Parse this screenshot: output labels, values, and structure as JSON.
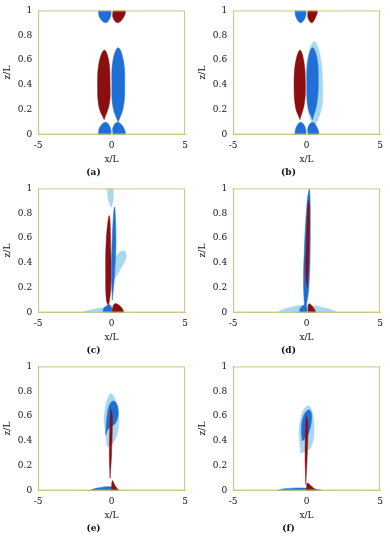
{
  "chart_data": [
    {
      "type": "contour",
      "title": "(a)",
      "xlabel": "x/L",
      "ylabel": "z/L",
      "xlim": [
        -5,
        5
      ],
      "ylim": [
        0,
        1
      ],
      "xticks": [
        -5,
        0,
        5
      ],
      "yticks": [
        0,
        0.2,
        0.4,
        0.6,
        0.8,
        1
      ],
      "grid": false,
      "series": [
        {
          "color": "#8b0f0f",
          "x": [
            -0.5,
            -0.15,
            -0.1,
            -0.2,
            -0.5,
            -0.85,
            -0.95,
            -0.85
          ],
          "values": [
            0.12,
            0.25,
            0.4,
            0.6,
            0.68,
            0.58,
            0.4,
            0.22
          ]
        },
        {
          "color": "#1f6fd6",
          "x": [
            0.45,
            0.8,
            0.9,
            0.8,
            0.45,
            0.1,
            0.02,
            0.1
          ],
          "values": [
            0.1,
            0.22,
            0.4,
            0.6,
            0.7,
            0.6,
            0.4,
            0.22
          ]
        },
        {
          "color": "#1f6fd6",
          "x": [
            -0.9,
            -0.1,
            -0.1,
            -0.4,
            -0.8
          ],
          "values": [
            0,
            0,
            0.06,
            0.1,
            0.06
          ]
        },
        {
          "color": "#1f6fd6",
          "x": [
            0.1,
            0.9,
            0.8,
            0.4,
            0.1
          ],
          "values": [
            0,
            0,
            0.06,
            0.1,
            0.06
          ]
        },
        {
          "color": "#1f6fd6",
          "x": [
            -0.9,
            -0.1,
            -0.1,
            -0.4,
            -0.8
          ],
          "values": [
            1,
            1,
            0.94,
            0.9,
            0.94
          ]
        },
        {
          "color": "#8b0f0f",
          "x": [
            0.1,
            0.9,
            0.8,
            0.4,
            0.1
          ],
          "values": [
            1,
            1,
            0.94,
            0.9,
            0.94
          ]
        }
      ]
    },
    {
      "type": "contour",
      "title": "(b)",
      "xlabel": "x/L",
      "ylabel": "z/L",
      "xlim": [
        -5,
        5
      ],
      "ylim": [
        0,
        1
      ],
      "xticks": [
        -5,
        0,
        5
      ],
      "yticks": [
        0,
        0.2,
        0.4,
        0.6,
        0.8,
        1
      ],
      "grid": false,
      "series": [
        {
          "color": "#a8d8f0",
          "x": [
            0.5,
            1.0,
            1.1,
            0.9,
            0.5,
            0.05,
            0,
            0.1
          ],
          "values": [
            0.05,
            0.2,
            0.4,
            0.65,
            0.75,
            0.6,
            0.4,
            0.2
          ]
        },
        {
          "color": "#8b0f0f",
          "x": [
            -0.45,
            -0.15,
            -0.08,
            -0.2,
            -0.45,
            -0.75,
            -0.85,
            -0.75
          ],
          "values": [
            0.12,
            0.25,
            0.42,
            0.6,
            0.68,
            0.58,
            0.4,
            0.22
          ]
        },
        {
          "color": "#1f6fd6",
          "x": [
            0.4,
            0.7,
            0.8,
            0.7,
            0.4,
            0.1,
            0.02,
            0.1
          ],
          "values": [
            0.12,
            0.25,
            0.45,
            0.62,
            0.7,
            0.6,
            0.4,
            0.22
          ]
        },
        {
          "color": "#1f6fd6",
          "x": [
            -0.8,
            -0.1,
            -0.1,
            -0.4,
            -0.7
          ],
          "values": [
            0,
            0,
            0.06,
            0.1,
            0.06
          ]
        },
        {
          "color": "#1f6fd6",
          "x": [
            0.1,
            0.8,
            0.7,
            0.4,
            0.1
          ],
          "values": [
            0,
            0,
            0.06,
            0.1,
            0.06
          ]
        },
        {
          "color": "#1f6fd6",
          "x": [
            -0.8,
            -0.1,
            -0.1,
            -0.4,
            -0.7
          ],
          "values": [
            1,
            1,
            0.94,
            0.9,
            0.94
          ]
        },
        {
          "color": "#8b0f0f",
          "x": [
            0.1,
            0.7,
            0.6,
            0.35,
            0.1
          ],
          "values": [
            1,
            1,
            0.94,
            0.9,
            0.94
          ]
        }
      ]
    },
    {
      "type": "contour",
      "title": "(c)",
      "xlabel": "x/L",
      "ylabel": "z/L",
      "xlim": [
        -5,
        5
      ],
      "ylim": [
        0,
        1
      ],
      "xticks": [
        -5,
        0,
        5
      ],
      "yticks": [
        0,
        0.2,
        0.4,
        0.6,
        0.8,
        1
      ],
      "grid": false,
      "series": [
        {
          "color": "#a8d8f0",
          "x": [
            0.1,
            0.6,
            1.0,
            0.8,
            0.3,
            0.1
          ],
          "values": [
            0.25,
            0.35,
            0.45,
            0.5,
            0.45,
            0.35
          ]
        },
        {
          "color": "#a8d8f0",
          "x": [
            -2,
            -0.2,
            -0.3,
            -1.5
          ],
          "values": [
            0,
            0,
            0.04,
            0.02
          ]
        },
        {
          "color": "#a8d8f0",
          "x": [
            -0.3,
            0.1,
            0,
            -0.2
          ],
          "values": [
            1,
            1,
            0.85,
            0.9
          ]
        },
        {
          "color": "#8b0f0f",
          "x": [
            -0.2,
            -0.05,
            -0.05,
            -0.15,
            -0.35,
            -0.4,
            -0.35
          ],
          "values": [
            0.05,
            0.2,
            0.5,
            0.78,
            0.6,
            0.3,
            0.1
          ]
        },
        {
          "color": "#1f6fd6",
          "x": [
            0.05,
            0.2,
            0.3,
            0.2,
            0.05,
            0
          ],
          "values": [
            0.1,
            0.3,
            0.6,
            0.85,
            0.6,
            0.3
          ]
        },
        {
          "color": "#8b0f0f",
          "x": [
            0,
            0.8,
            0.6,
            0.2
          ],
          "values": [
            0,
            0,
            0.05,
            0.07
          ]
        },
        {
          "color": "#1f6fd6",
          "x": [
            -0.6,
            0,
            -0.1,
            -0.5
          ],
          "values": [
            0,
            0,
            0.06,
            0.04
          ]
        }
      ]
    },
    {
      "type": "contour",
      "title": "(d)",
      "xlabel": "x/L",
      "ylabel": "z/L",
      "xlim": [
        -5,
        5
      ],
      "ylim": [
        0,
        1
      ],
      "xticks": [
        -5,
        0,
        5
      ],
      "yticks": [
        0,
        0.2,
        0.4,
        0.6,
        0.8,
        1
      ],
      "grid": false,
      "series": [
        {
          "color": "#a8d8f0",
          "x": [
            -2,
            2,
            1.5,
            0,
            -1.5
          ],
          "values": [
            0,
            0,
            0.03,
            0.06,
            0.03
          ]
        },
        {
          "color": "#1f6fd6",
          "x": [
            -0.1,
            0.15,
            0.25,
            0.2,
            0.05,
            -0.15,
            -0.2
          ],
          "values": [
            0,
            0.2,
            0.6,
            1,
            0.9,
            0.5,
            0.2
          ]
        },
        {
          "color": "#8b0f0f",
          "x": [
            0.05,
            0.15,
            0.2,
            0.12,
            0,
            -0.05
          ],
          "values": [
            0.2,
            0.45,
            0.85,
            0.9,
            0.6,
            0.3
          ]
        },
        {
          "color": "#8b0f0f",
          "x": [
            0.1,
            0.6,
            0.4,
            0.15
          ],
          "values": [
            0,
            0,
            0.05,
            0.07
          ]
        },
        {
          "color": "#1f6fd6",
          "x": [
            -0.5,
            0,
            -0.1,
            -0.4
          ],
          "values": [
            0,
            0,
            0.06,
            0.04
          ]
        }
      ]
    },
    {
      "type": "contour",
      "title": "(e)",
      "xlabel": "x/L",
      "ylabel": "z/L",
      "xlim": [
        -5,
        5
      ],
      "ylim": [
        0,
        1
      ],
      "xticks": [
        -5,
        0,
        5
      ],
      "yticks": [
        0,
        0.2,
        0.4,
        0.6,
        0.8,
        1
      ],
      "grid": false,
      "series": [
        {
          "color": "#a8d8f0",
          "x": [
            -0.3,
            0.2,
            0.5,
            0.3,
            -0.1,
            -0.5,
            -0.4
          ],
          "values": [
            0.35,
            0.4,
            0.55,
            0.72,
            0.78,
            0.6,
            0.45
          ]
        },
        {
          "color": "#1f6fd6",
          "x": [
            -0.4,
            -0.2,
            0.3,
            0.45,
            0.2,
            -0.1,
            -0.3
          ],
          "values": [
            0.45,
            0.5,
            0.55,
            0.65,
            0.72,
            0.7,
            0.6
          ]
        },
        {
          "color": "#8b0f0f",
          "x": [
            -0.1,
            0,
            0.05,
            -0.05,
            -0.15
          ],
          "values": [
            0.1,
            0.3,
            0.6,
            0.65,
            0.3
          ]
        },
        {
          "color": "#1f6fd6",
          "x": [
            -1.5,
            0.5,
            0,
            -1
          ],
          "values": [
            0,
            0,
            0.03,
            0.02
          ]
        },
        {
          "color": "#8b0f0f",
          "x": [
            0,
            0.4,
            0.2,
            0.05
          ],
          "values": [
            0,
            0,
            0.05,
            0.08
          ]
        }
      ]
    },
    {
      "type": "contour",
      "title": "(f)",
      "xlabel": "x/L",
      "ylabel": "z/L",
      "xlim": [
        -5,
        5
      ],
      "ylim": [
        0,
        1
      ],
      "xticks": [
        -5,
        0,
        5
      ],
      "yticks": [
        0,
        0.2,
        0.4,
        0.6,
        0.8,
        1
      ],
      "grid": false,
      "series": [
        {
          "color": "#a8d8f0",
          "x": [
            -0.4,
            0.3,
            0.5,
            0.2,
            -0.2,
            -0.5
          ],
          "values": [
            0.3,
            0.35,
            0.55,
            0.68,
            0.65,
            0.5
          ]
        },
        {
          "color": "#1f6fd6",
          "x": [
            -0.3,
            0.1,
            0.35,
            0.15,
            -0.2,
            -0.35
          ],
          "values": [
            0.4,
            0.45,
            0.6,
            0.65,
            0.6,
            0.5
          ]
        },
        {
          "color": "#8b0f0f",
          "x": [
            -0.05,
            0.05,
            0.08,
            -0.02,
            -0.1
          ],
          "values": [
            0.05,
            0.3,
            0.55,
            0.6,
            0.3
          ]
        },
        {
          "color": "#1f6fd6",
          "x": [
            -2,
            1,
            0,
            -1.5
          ],
          "values": [
            0,
            0,
            0.02,
            0.015
          ]
        },
        {
          "color": "#8b0f0f",
          "x": [
            0,
            0.6,
            0.3,
            0.05
          ],
          "values": [
            0,
            0,
            0.04,
            0.06
          ]
        }
      ]
    }
  ]
}
